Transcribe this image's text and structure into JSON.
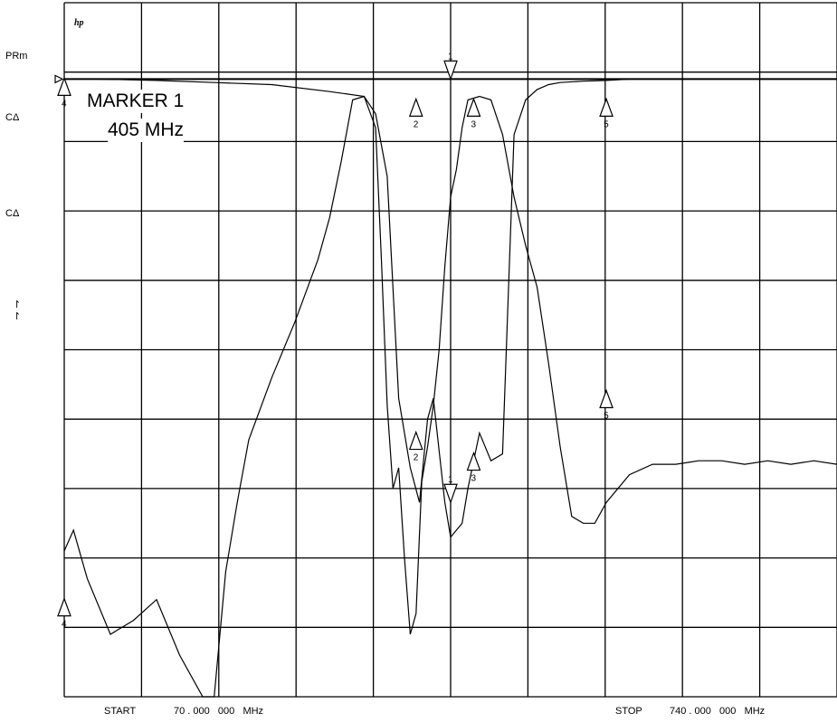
{
  "left_labels": {
    "ref": "PRm",
    "ch1": "CΔ",
    "ch2": "CΔ",
    "arrow1": "↾",
    "arrow2": "↾"
  },
  "logo": "hp",
  "marker_readout": {
    "line1": "MARKER 1",
    "line2": "405 MHz"
  },
  "footer": {
    "start_label": "START",
    "start_value": "70 . 000   000   MHz",
    "stop_label": "STOP",
    "stop_value": "740 . 000   000   MHz"
  },
  "colors": {
    "trace": "#000000",
    "grid": "#000000",
    "background": "#ffffff"
  },
  "chart_data": {
    "type": "line",
    "title": "",
    "xlabel": "",
    "ylabel": "",
    "xlim": [
      70,
      740
    ],
    "ylim": [
      0,
      10
    ],
    "x_unit": "MHz",
    "grid": true,
    "grid_divisions": {
      "x": 10,
      "y": 10
    },
    "series": [
      {
        "x": [
          70,
          78,
          90,
          110,
          130,
          150,
          170,
          190,
          200,
          210,
          220,
          230,
          250,
          270,
          290,
          300,
          310,
          320,
          330,
          340,
          345,
          350,
          355,
          360,
          365,
          370,
          375,
          380,
          385,
          390,
          395,
          400,
          405,
          410,
          415,
          420,
          430,
          440,
          450,
          460,
          470,
          480,
          490,
          500,
          510,
          520,
          530,
          540,
          560,
          580,
          600,
          620,
          640,
          660,
          680,
          700,
          720,
          740
        ],
        "y": [
          2.1,
          2.4,
          1.7,
          0.9,
          1.1,
          1.4,
          0.6,
          0.0,
          0.0,
          1.8,
          2.8,
          3.7,
          4.6,
          5.4,
          6.3,
          6.9,
          7.7,
          8.6,
          8.65,
          8.2,
          6.3,
          4.2,
          3.0,
          3.3,
          2.0,
          0.9,
          1.2,
          3.1,
          3.6,
          4.2,
          5.0,
          6.2,
          7.2,
          7.6,
          8.2,
          8.6,
          8.65,
          8.6,
          8.1,
          7.2,
          6.5,
          5.9,
          4.8,
          3.6,
          2.6,
          2.5,
          2.5,
          2.8,
          3.2,
          3.35,
          3.35,
          3.4,
          3.4,
          3.35,
          3.4,
          3.35,
          3.4,
          3.35
        ]
      },
      {
        "x": [
          70,
          100,
          150,
          200,
          250,
          300,
          330,
          340,
          350,
          360,
          370,
          378,
          385,
          390,
          400,
          405,
          410,
          415,
          420,
          430,
          440,
          450,
          460,
          470,
          480,
          490,
          500,
          520,
          540,
          560,
          580,
          600,
          620,
          640,
          660,
          680,
          700,
          720,
          740
        ],
        "y": [
          8.9,
          8.9,
          8.88,
          8.85,
          8.82,
          8.72,
          8.65,
          8.4,
          7.5,
          4.3,
          3.3,
          2.8,
          4.0,
          4.3,
          2.8,
          2.3,
          2.4,
          2.5,
          3.0,
          3.8,
          3.4,
          3.5,
          8.1,
          8.6,
          8.75,
          8.82,
          8.85,
          8.87,
          8.88,
          8.9,
          8.9,
          8.9,
          8.9,
          8.9,
          8.9,
          8.9,
          8.9,
          8.9,
          8.9
        ]
      }
    ],
    "markers": [
      {
        "id": "1",
        "x": 405,
        "y": 8.9,
        "dir": "down"
      },
      {
        "id": "1",
        "x": 405,
        "y": 2.8,
        "dir": "down"
      },
      {
        "id": "2",
        "x": 375,
        "y": 8.6,
        "dir": "up"
      },
      {
        "id": "2",
        "x": 375,
        "y": 3.8,
        "dir": "up"
      },
      {
        "id": "3",
        "x": 425,
        "y": 8.6,
        "dir": "up"
      },
      {
        "id": "3",
        "x": 425,
        "y": 3.5,
        "dir": "up"
      },
      {
        "id": "4",
        "x": 70,
        "y": 8.9,
        "dir": "up"
      },
      {
        "id": "4",
        "x": 70,
        "y": 1.4,
        "dir": "up"
      },
      {
        "id": "5",
        "x": 540,
        "y": 8.6,
        "dir": "up"
      },
      {
        "id": "5",
        "x": 540,
        "y": 4.4,
        "dir": "up"
      }
    ],
    "ref_level": 8.9
  }
}
